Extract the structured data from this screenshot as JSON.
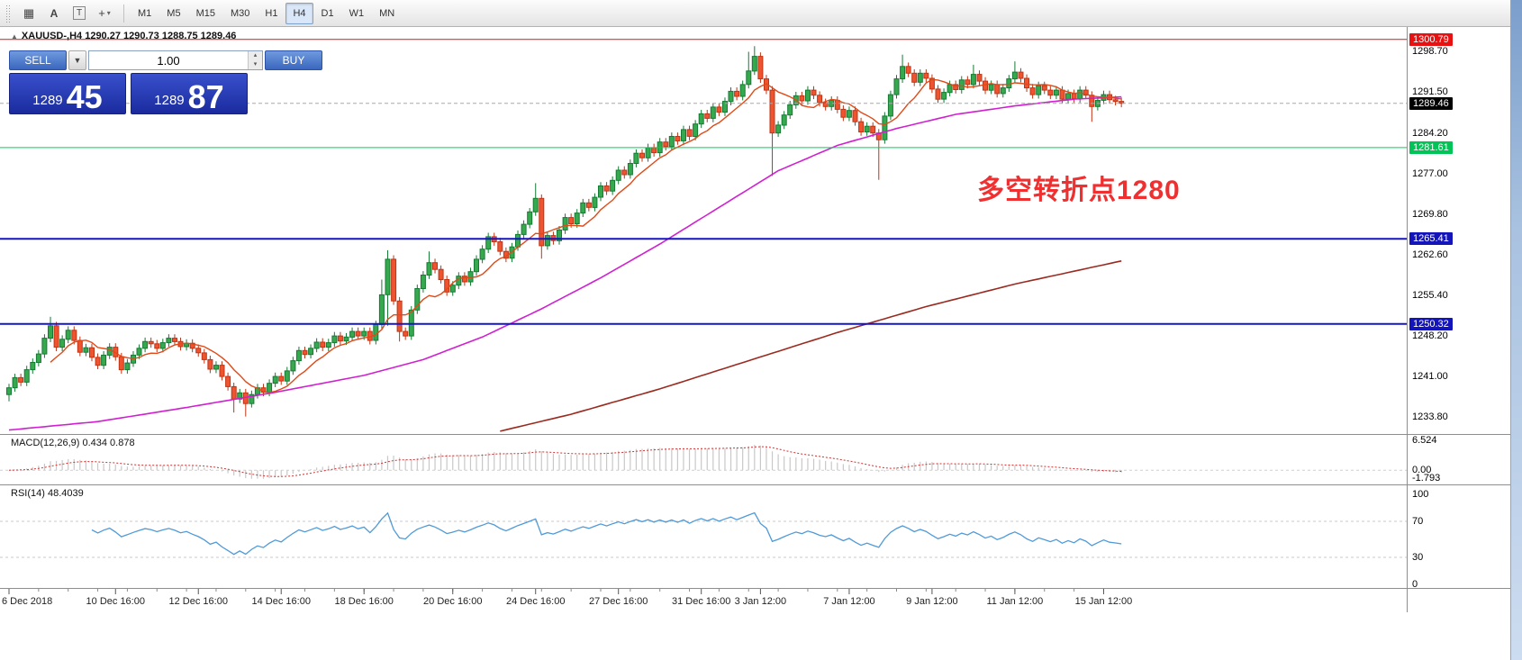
{
  "toolbar": {
    "icons": [
      {
        "name": "chart-type-icon",
        "glyph": "▦"
      },
      {
        "name": "label-a-icon",
        "glyph": "A"
      },
      {
        "name": "text-tool-icon",
        "glyph": "T"
      },
      {
        "name": "crosshair-icon",
        "glyph": "+"
      }
    ],
    "timeframes": [
      "M1",
      "M5",
      "M15",
      "M30",
      "H1",
      "H4",
      "D1",
      "W1",
      "MN"
    ],
    "active_timeframe": "H4"
  },
  "chart": {
    "title": "XAUUSD-,H4  1290.27 1290.73 1288.75 1289.46",
    "annotation": {
      "text": "多空转折点1280",
      "color": "#f03030"
    }
  },
  "oct": {
    "sell_label": "SELL",
    "buy_label": "BUY",
    "volume": "1.00",
    "bid_main": "1289",
    "bid_pips": "45",
    "ask_main": "1289",
    "ask_pips": "87"
  },
  "chart_data": {
    "type": "candlestick",
    "symbol": "XAUUSD-",
    "timeframe": "H4",
    "last_ohlc": {
      "open": 1290.27,
      "high": 1290.73,
      "low": 1288.75,
      "close": 1289.46
    },
    "y_range": [
      1230.8,
      1303.0
    ],
    "first_open": 1237.8,
    "default_wick": 0.7,
    "closes": [
      1239.0,
      1240.8,
      1240.0,
      1242.2,
      1243.5,
      1245.0,
      1247.8,
      1250.0,
      1246.2,
      1247.6,
      1249.2,
      1247.4,
      1245.3,
      1246.1,
      1244.4,
      1243.0,
      1244.8,
      1246.2,
      1244.5,
      1242.2,
      1243.4,
      1244.8,
      1246.0,
      1247.2,
      1246.8,
      1246.0,
      1247.0,
      1247.8,
      1247.2,
      1246.3,
      1246.9,
      1246.0,
      1245.2,
      1244.0,
      1242.3,
      1243.0,
      1241.0,
      1239.2,
      1237.0,
      1238.1,
      1236.2,
      1237.8,
      1239.0,
      1238.2,
      1239.8,
      1241.0,
      1240.2,
      1242.0,
      1243.8,
      1245.6,
      1244.9,
      1246.0,
      1247.1,
      1246.2,
      1247.0,
      1248.2,
      1247.3,
      1248.0,
      1249.0,
      1248.2,
      1249.0,
      1247.4,
      1250.2,
      1255.5,
      1261.8,
      1254.4,
      1249.0,
      1248.2,
      1252.8,
      1256.6,
      1259.0,
      1261.2,
      1260.0,
      1258.2,
      1256.0,
      1257.2,
      1258.8,
      1257.8,
      1259.6,
      1261.8,
      1263.6,
      1265.8,
      1264.9,
      1263.2,
      1262.0,
      1264.0,
      1266.2,
      1268.0,
      1270.2,
      1272.6,
      1264.2,
      1266.0,
      1265.1,
      1267.0,
      1269.2,
      1268.1,
      1270.0,
      1271.8,
      1271.0,
      1272.8,
      1274.8,
      1273.9,
      1275.8,
      1277.6,
      1276.8,
      1278.8,
      1280.6,
      1279.8,
      1281.6,
      1280.7,
      1282.6,
      1281.8,
      1283.6,
      1282.8,
      1284.8,
      1283.6,
      1285.8,
      1287.6,
      1286.8,
      1288.8,
      1287.9,
      1289.8,
      1291.6,
      1290.7,
      1292.8,
      1295.2,
      1297.8,
      1293.8,
      1291.8,
      1284.2,
      1285.6,
      1287.4,
      1289.2,
      1290.8,
      1289.9,
      1291.8,
      1290.9,
      1289.6,
      1288.9,
      1290.0,
      1288.4,
      1287.0,
      1288.2,
      1286.2,
      1284.4,
      1285.4,
      1284.2,
      1283.0,
      1287.2,
      1291.0,
      1293.8,
      1296.0,
      1294.8,
      1293.2,
      1294.8,
      1293.9,
      1292.0,
      1290.2,
      1291.4,
      1292.8,
      1291.9,
      1293.6,
      1292.8,
      1294.6,
      1293.4,
      1291.8,
      1292.8,
      1291.2,
      1292.2,
      1293.8,
      1295.0,
      1293.9,
      1292.2,
      1291.0,
      1292.6,
      1291.8,
      1290.9,
      1291.8,
      1290.2,
      1291.2,
      1290.3,
      1291.8,
      1290.9,
      1288.9,
      1290.0,
      1291.0,
      1290.1,
      1289.8,
      1289.46
    ],
    "wick_overrides": {
      "0": [
        null,
        1236.6
      ],
      "7": [
        1251.6,
        null
      ],
      "38": [
        null,
        1234.6
      ],
      "40": [
        null,
        1233.9
      ],
      "63": [
        1258.2,
        null
      ],
      "64": [
        1263.4,
        1250.0
      ],
      "66": [
        null,
        1247.2
      ],
      "71": [
        1263.2,
        null
      ],
      "89": [
        1275.3,
        null
      ],
      "90": [
        null,
        1261.9
      ],
      "125": [
        1298.6,
        null
      ],
      "126": [
        1299.6,
        null
      ],
      "129": [
        null,
        1276.6
      ],
      "147": [
        null,
        1275.9
      ],
      "151": [
        1298.1,
        null
      ],
      "163": [
        1296.3,
        null
      ],
      "170": [
        1296.9,
        null
      ],
      "183": [
        null,
        1286.2
      ]
    },
    "candle_colors": {
      "up_fill": "#36a84e",
      "up_border": "#157a33",
      "down_fill": "#ef5430",
      "down_border": "#bf3414"
    },
    "price_ticks": [
      "1298.70",
      "1291.50",
      "1284.20",
      "1277.00",
      "1269.80",
      "1262.60",
      "1255.40",
      "1248.20",
      "1241.00",
      "1233.80"
    ],
    "hlines": [
      {
        "price": 1300.79,
        "color": "#e81010",
        "width": 1,
        "dash": null,
        "label": "1300.79",
        "label_bg": "#e81010"
      },
      {
        "price": 1289.46,
        "color": "#a8a8a8",
        "width": 1,
        "dash": "4,3",
        "label": "1289.46",
        "label_bg": "#000000"
      },
      {
        "price": 1281.61,
        "color": "#00cf5a",
        "width": 1,
        "dash": null,
        "label": "1281.61",
        "label_bg": "#00c455"
      },
      {
        "price": 1265.41,
        "color": "#1414cc",
        "width": 2,
        "dash": null,
        "label": "1265.41",
        "label_bg": "#1414bb"
      },
      {
        "price": 1250.32,
        "color": "#1414cc",
        "width": 2,
        "dash": null,
        "label": "1250.32",
        "label_bg": "#1414bb"
      }
    ],
    "moving_averages": {
      "fast": {
        "type": "sma",
        "period": 8,
        "color": "#e04a18"
      },
      "mid": {
        "color": "#d020d0",
        "points": [
          [
            0,
            1231.5
          ],
          [
            15,
            1233.0
          ],
          [
            30,
            1235.5
          ],
          [
            45,
            1238.2
          ],
          [
            60,
            1241.2
          ],
          [
            70,
            1244.0
          ],
          [
            80,
            1248.0
          ],
          [
            90,
            1253.0
          ],
          [
            100,
            1258.5
          ],
          [
            110,
            1264.5
          ],
          [
            120,
            1271.0
          ],
          [
            130,
            1277.5
          ],
          [
            140,
            1282.0
          ],
          [
            150,
            1285.0
          ],
          [
            160,
            1287.5
          ],
          [
            170,
            1289.0
          ],
          [
            180,
            1290.2
          ],
          [
            188,
            1290.6
          ]
        ]
      },
      "slow": {
        "color": "#9a2a20",
        "points": [
          [
            83,
            1231.3
          ],
          [
            95,
            1234.3
          ],
          [
            110,
            1238.8
          ],
          [
            125,
            1243.8
          ],
          [
            140,
            1248.8
          ],
          [
            155,
            1253.4
          ],
          [
            170,
            1257.4
          ],
          [
            188,
            1261.5
          ]
        ]
      }
    },
    "time_labels": [
      [
        "6 Dec 2018",
        0
      ],
      [
        "10 Dec 16:00",
        18
      ],
      [
        "12 Dec 16:00",
        32
      ],
      [
        "14 Dec 16:00",
        46
      ],
      [
        "18 Dec 16:00",
        60
      ],
      [
        "20 Dec 16:00",
        75
      ],
      [
        "24 Dec 16:00",
        89
      ],
      [
        "27 Dec 16:00",
        103
      ],
      [
        "31 Dec 16:00",
        117
      ],
      [
        "3 Jan 12:00",
        127
      ],
      [
        "7 Jan 12:00",
        142
      ],
      [
        "9 Jan 12:00",
        156
      ],
      [
        "11 Jan 12:00",
        170
      ],
      [
        "15 Jan 12:00",
        185
      ]
    ],
    "indicators": {
      "macd": {
        "label": "MACD(12,26,9) 0.434 0.878",
        "fast": 12,
        "slow": 26,
        "signal": 9,
        "values_shown": [
          0.434,
          0.878
        ],
        "scale": [
          -3.1,
          7.7
        ],
        "ticks": [
          [
            "6.524",
            6.524
          ],
          [
            "0.00",
            0
          ],
          [
            "-1.793",
            -1.793
          ]
        ],
        "bar_color": "#c8c8c8",
        "signal_color": "#d23030"
      },
      "rsi": {
        "label": "RSI(14) 48.4039",
        "period": 14,
        "value_shown": 48.4039,
        "ticks": [
          [
            "100",
            100
          ],
          [
            "70",
            70
          ],
          [
            "30",
            30
          ],
          [
            "0",
            0
          ]
        ],
        "levels": [
          70,
          30
        ],
        "color": "#4f9ad8"
      }
    }
  }
}
